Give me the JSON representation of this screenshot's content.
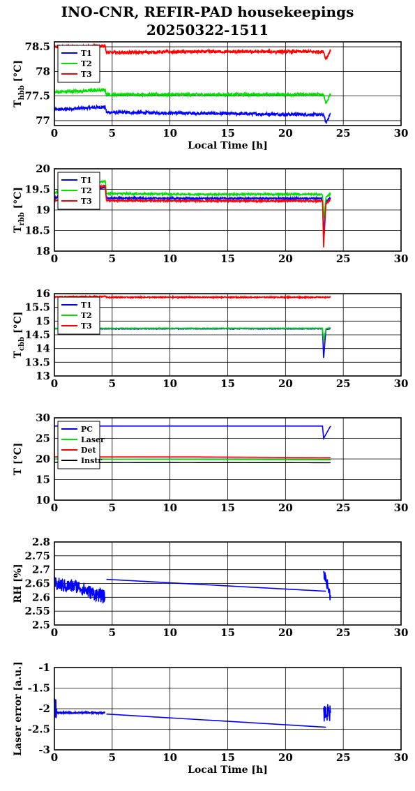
{
  "title_line1": "INO-CNR, REFIR-PAD housekeepings",
  "title_line2": "20250322-1511",
  "chart_data": [
    {
      "type": "line",
      "xlabel": "Local Time [h]",
      "ylabel": "T",
      "ylabel_sub": "hbb",
      "ylabel_unit": " [°C]",
      "xlim": [
        0,
        30
      ],
      "ylim": [
        76.9,
        78.6
      ],
      "xticks": [
        0,
        5,
        10,
        15,
        20,
        25,
        30
      ],
      "yticks": [
        77,
        77.5,
        78,
        78.5
      ],
      "ytick_labels": [
        "77",
        "77.5",
        "78",
        "78.5"
      ],
      "grid": true,
      "legend": "top-left",
      "series": [
        {
          "name": "T1",
          "color": "#0000ff",
          "noise": 0.03,
          "x": [
            0,
            4.4,
            4.5,
            12,
            23.3,
            23.5,
            23.9
          ],
          "y": [
            77.22,
            77.28,
            77.17,
            77.15,
            77.12,
            76.95,
            77.15
          ]
        },
        {
          "name": "T2",
          "color": "#00e000",
          "noise": 0.03,
          "x": [
            0,
            4.4,
            4.5,
            12,
            23.3,
            23.5,
            23.9
          ],
          "y": [
            77.58,
            77.62,
            77.53,
            77.53,
            77.53,
            77.35,
            77.55
          ]
        },
        {
          "name": "T3",
          "color": "#ff0000",
          "noise": 0.03,
          "x": [
            0,
            4.4,
            4.5,
            12,
            23.3,
            23.5,
            23.9
          ],
          "y": [
            78.5,
            78.52,
            78.38,
            78.4,
            78.4,
            78.25,
            78.44
          ]
        }
      ]
    },
    {
      "type": "line",
      "xlabel": "",
      "ylabel": "T",
      "ylabel_sub": "rbb",
      "ylabel_unit": " [°C]",
      "xlim": [
        0,
        30
      ],
      "ylim": [
        18,
        20
      ],
      "xticks": [
        0,
        5,
        10,
        15,
        20,
        25,
        30
      ],
      "yticks": [
        18,
        18.5,
        19,
        19.5,
        20
      ],
      "ytick_labels": [
        "18",
        "18.5",
        "19",
        "19.5",
        "20"
      ],
      "grid": true,
      "legend": "top-left",
      "series": [
        {
          "name": "T1",
          "color": "#0000ff",
          "noise": 0.02,
          "x": [
            0,
            4.4,
            4.5,
            12,
            23.2,
            23.3,
            23.5,
            23.9
          ],
          "y": [
            19.3,
            19.55,
            19.29,
            19.28,
            19.28,
            18.4,
            19.2,
            19.3
          ]
        },
        {
          "name": "T2",
          "color": "#00e000",
          "noise": 0.02,
          "x": [
            0,
            4.4,
            4.5,
            12,
            23.2,
            23.3,
            23.5,
            23.9
          ],
          "y": [
            19.42,
            19.7,
            19.4,
            19.38,
            19.38,
            18.8,
            19.3,
            19.4
          ]
        },
        {
          "name": "T3",
          "color": "#ff0000",
          "noise": 0.02,
          "x": [
            0,
            4.4,
            4.5,
            12,
            23.2,
            23.3,
            23.5,
            23.9
          ],
          "y": [
            19.22,
            19.6,
            19.23,
            19.22,
            19.22,
            18.1,
            19.15,
            19.25
          ]
        }
      ]
    },
    {
      "type": "line",
      "xlabel": "",
      "ylabel": "T",
      "ylabel_sub": "cbb",
      "ylabel_unit": " [°C]",
      "xlim": [
        0,
        30
      ],
      "ylim": [
        13,
        16
      ],
      "xticks": [
        0,
        5,
        10,
        15,
        20,
        25,
        30
      ],
      "yticks": [
        13,
        13.5,
        14,
        14.5,
        15,
        15.5,
        16
      ],
      "ytick_labels": [
        "13",
        "13.5",
        "14",
        "14.5",
        "15",
        "15.5",
        "16"
      ],
      "grid": true,
      "legend": "top-left",
      "series": [
        {
          "name": "T1",
          "color": "#0000ff",
          "noise": 0.01,
          "x": [
            0,
            4.4,
            4.5,
            12,
            23.2,
            23.3,
            23.5,
            23.9
          ],
          "y": [
            14.72,
            14.72,
            14.72,
            14.72,
            14.72,
            13.65,
            14.7,
            14.72
          ]
        },
        {
          "name": "T2",
          "color": "#00e000",
          "noise": 0.01,
          "x": [
            0,
            4.4,
            4.5,
            12,
            23.2,
            23.3,
            23.5,
            23.9
          ],
          "y": [
            14.73,
            14.74,
            14.74,
            14.74,
            14.74,
            14.3,
            14.73,
            14.75
          ]
        },
        {
          "name": "T3",
          "color": "#ff0000",
          "noise": 0.02,
          "x": [
            0,
            4.4,
            4.5,
            12,
            23.3,
            23.9
          ],
          "y": [
            15.88,
            15.9,
            15.87,
            15.87,
            15.87,
            15.87
          ]
        }
      ]
    },
    {
      "type": "line",
      "xlabel": "",
      "ylabel": "T [°C]",
      "ylabel_sub": "",
      "ylabel_unit": "",
      "xlim": [
        0,
        30
      ],
      "ylim": [
        10,
        30
      ],
      "xticks": [
        0,
        5,
        10,
        15,
        20,
        25,
        30
      ],
      "yticks": [
        10,
        15,
        20,
        25,
        30
      ],
      "ytick_labels": [
        "10",
        "15",
        "20",
        "25",
        "30"
      ],
      "grid": true,
      "legend": "top-left",
      "series": [
        {
          "name": "PC",
          "color": "#0000ff",
          "noise": 0,
          "x": [
            0,
            4.4,
            12,
            23.2,
            23.3,
            23.9
          ],
          "y": [
            28,
            28,
            28,
            28,
            25,
            28
          ]
        },
        {
          "name": "Laser",
          "color": "#00e000",
          "noise": 0,
          "x": [
            0,
            23.9
          ],
          "y": [
            20,
            19.8
          ]
        },
        {
          "name": "Det",
          "color": "#ff0000",
          "noise": 0,
          "x": [
            0,
            12,
            23.9
          ],
          "y": [
            20.5,
            20.5,
            20.3
          ]
        },
        {
          "name": "Instr",
          "color": "#000000",
          "noise": 0,
          "x": [
            0,
            23.9
          ],
          "y": [
            19.2,
            19.1
          ]
        }
      ]
    },
    {
      "type": "line",
      "xlabel": "",
      "ylabel": "RH [%]",
      "ylabel_sub": "",
      "ylabel_unit": "",
      "xlim": [
        0,
        30
      ],
      "ylim": [
        2.5,
        2.8
      ],
      "xticks": [
        0,
        5,
        10,
        15,
        20,
        25,
        30
      ],
      "yticks": [
        2.5,
        2.55,
        2.6,
        2.65,
        2.7,
        2.75,
        2.8
      ],
      "ytick_labels": [
        "2.5",
        "2.55",
        "2.6",
        "2.65",
        "2.7",
        "2.75",
        "2.8"
      ],
      "grid": true,
      "legend": "",
      "series": [
        {
          "name": "",
          "color": "#0000ff",
          "noise": 0.025,
          "x": [
            0,
            1,
            2,
            3,
            4.4
          ],
          "y": [
            2.65,
            2.64,
            2.64,
            2.62,
            2.6
          ]
        },
        {
          "name": "",
          "color": "#0000ff",
          "noise": 0,
          "x": [
            4.5,
            23.5
          ],
          "y": [
            2.665,
            2.622
          ]
        },
        {
          "name": "",
          "color": "#0000ff",
          "noise": 0.02,
          "x": [
            23.3,
            23.6,
            23.9
          ],
          "y": [
            2.69,
            2.65,
            2.6
          ]
        }
      ]
    },
    {
      "type": "line",
      "xlabel": "Local Time [h]",
      "ylabel": "Laser error [a.u.]",
      "ylabel_sub": "",
      "ylabel_unit": "",
      "xlim": [
        0,
        30
      ],
      "ylim": [
        -3,
        -1
      ],
      "xticks": [
        0,
        5,
        10,
        15,
        20,
        25,
        30
      ],
      "yticks": [
        -3,
        -2.5,
        -2,
        -1.5,
        -1
      ],
      "ytick_labels": [
        "-3",
        "-2.5",
        "-2",
        "-1.5",
        "-1"
      ],
      "grid": true,
      "legend": "",
      "series": [
        {
          "name": "",
          "color": "#0000ff",
          "noise": 0.02,
          "x": [
            0,
            4.4
          ],
          "y": [
            -2.1,
            -2.1
          ]
        },
        {
          "name": "",
          "color": "#0000ff",
          "noise": 0.25,
          "x": [
            0,
            0.2
          ],
          "y": [
            -2.0,
            -2.0
          ]
        },
        {
          "name": "",
          "color": "#0000ff",
          "noise": 0,
          "x": [
            4.5,
            23.5
          ],
          "y": [
            -2.13,
            -2.45
          ]
        },
        {
          "name": "",
          "color": "#0000ff",
          "noise": 0.22,
          "x": [
            23.3,
            23.9
          ],
          "y": [
            -2.1,
            -2.1
          ]
        }
      ]
    }
  ]
}
